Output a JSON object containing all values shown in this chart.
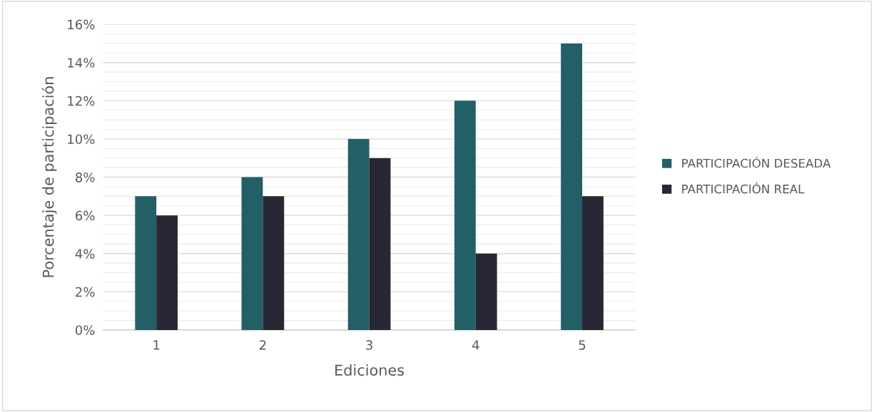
{
  "chart_data": {
    "type": "bar",
    "xlabel": "Ediciones",
    "ylabel": "Porcentaje de participación",
    "categories": [
      "1",
      "2",
      "3",
      "4",
      "5"
    ],
    "series": [
      {
        "name": "PARTICIPACIÓN DESEADA",
        "color": "#235f66",
        "values": [
          7,
          8,
          10,
          12,
          15
        ]
      },
      {
        "name": "PARTICIPACIÓN REAL",
        "color": "#272833",
        "values": [
          6,
          7,
          9,
          4,
          7
        ]
      }
    ],
    "ylim": [
      0,
      16
    ],
    "yticks": [
      {
        "value": 0,
        "label": "0%"
      },
      {
        "value": 2,
        "label": "2%"
      },
      {
        "value": 4,
        "label": "4%"
      },
      {
        "value": 6,
        "label": "6%"
      },
      {
        "value": 8,
        "label": "8%"
      },
      {
        "value": 10,
        "label": "10%"
      },
      {
        "value": 12,
        "label": "12%"
      },
      {
        "value": 14,
        "label": "14%"
      },
      {
        "value": 16,
        "label": "16%"
      }
    ],
    "grid": "y",
    "legend": "right"
  }
}
